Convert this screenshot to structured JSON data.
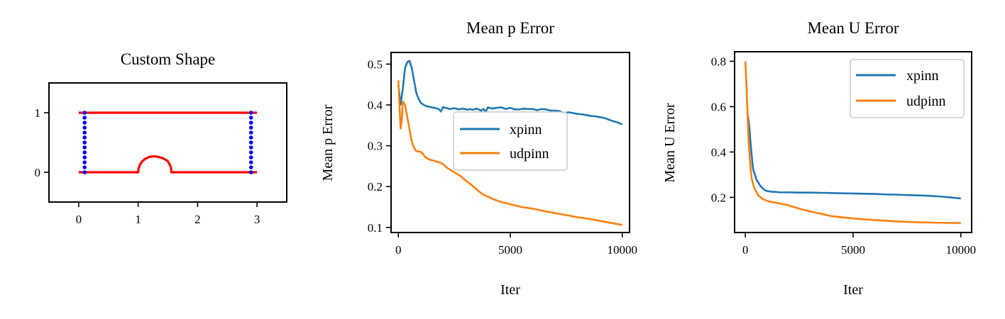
{
  "chart_data": [
    {
      "type": "line",
      "title": "Custom Shape",
      "xlabel": "",
      "ylabel": "",
      "xlim": [
        -0.5,
        3.5
      ],
      "ylim": [
        -0.5,
        1.5
      ],
      "xticks": [
        0,
        1,
        2,
        3
      ],
      "yticks": [
        0,
        1
      ],
      "x_tick_labels": [
        "0",
        "1",
        "2",
        "3"
      ],
      "y_tick_labels": [
        "0",
        "1"
      ],
      "grid": false,
      "series": [
        {
          "role": "top-boundary",
          "color": "#ff0000",
          "x": [
            0,
            3
          ],
          "y": [
            1,
            1
          ]
        },
        {
          "role": "bottom-boundary-with-bump",
          "color": "#ff0000",
          "x": [
            0,
            1.0,
            1.0079,
            1.0313,
            1.0693,
            1.1202,
            1.1819,
            1.2515,
            1.3262,
            1.4025,
            1.4773,
            1.5,
            1.5462,
            1.5573,
            1.5573,
            3
          ],
          "y": [
            0,
            0,
            0.0669,
            0.1294,
            0.1837,
            0.2263,
            0.2546,
            0.2667,
            0.2618,
            0.2402,
            0.2035,
            0.1838,
            0.1,
            0.05,
            0,
            0
          ]
        },
        {
          "role": "left-interface-points",
          "color": "#0000ff",
          "marker": "dot",
          "x_const": 0.1,
          "y": [
            0,
            0.0833,
            0.1667,
            0.25,
            0.3333,
            0.4167,
            0.5,
            0.5833,
            0.6667,
            0.75,
            0.8333,
            0.9167,
            1
          ]
        },
        {
          "role": "right-interface-points",
          "color": "#0000ff",
          "marker": "dot",
          "x_const": 2.9,
          "y": [
            0,
            0.0833,
            0.1667,
            0.25,
            0.3333,
            0.4167,
            0.5,
            0.5833,
            0.6667,
            0.75,
            0.8333,
            0.9167,
            1
          ]
        }
      ]
    },
    {
      "type": "line",
      "title": "Mean p Error",
      "xlabel": "Iter",
      "ylabel": "Mean p Error",
      "xlim": [
        -325,
        10325
      ],
      "ylim": [
        0.0875,
        0.5285
      ],
      "xticks": [
        0,
        5000,
        10000
      ],
      "yticks": [
        0.1,
        0.2,
        0.3,
        0.4,
        0.5
      ],
      "x_tick_labels": [
        "0",
        "5000",
        "10000"
      ],
      "y_tick_labels": [
        "0.1",
        "0.2",
        "0.3",
        "0.4",
        "0.5"
      ],
      "grid": false,
      "legend": "center-right",
      "series": [
        {
          "name": "xpinn",
          "color": "#1f77b4",
          "x": [
            0,
            100,
            200,
            300,
            400,
            500,
            600,
            700,
            800,
            900,
            1000,
            1200,
            1400,
            1600,
            1800,
            1900,
            2000,
            2100,
            2300,
            2500,
            2700,
            2900,
            3100,
            3200,
            3300,
            3500,
            3700,
            3800,
            3900,
            4000,
            4200,
            4400,
            4600,
            4800,
            5000,
            5200,
            5400,
            5600,
            5800,
            6000,
            6200,
            6400,
            6600,
            6800,
            7000,
            7200,
            7400,
            7600,
            7800,
            8000,
            8200,
            8400,
            8600,
            8800,
            9000,
            9200,
            9400,
            9600,
            9800,
            10000
          ],
          "y": [
            0.45,
            0.4,
            0.44,
            0.49,
            0.505,
            0.508,
            0.49,
            0.46,
            0.43,
            0.415,
            0.405,
            0.398,
            0.395,
            0.393,
            0.39,
            0.384,
            0.395,
            0.393,
            0.39,
            0.392,
            0.389,
            0.391,
            0.388,
            0.39,
            0.388,
            0.391,
            0.386,
            0.39,
            0.383,
            0.394,
            0.391,
            0.393,
            0.394,
            0.39,
            0.393,
            0.389,
            0.389,
            0.391,
            0.39,
            0.39,
            0.387,
            0.39,
            0.389,
            0.386,
            0.386,
            0.385,
            0.38,
            0.382,
            0.38,
            0.378,
            0.377,
            0.375,
            0.373,
            0.372,
            0.37,
            0.368,
            0.364,
            0.36,
            0.357,
            0.352
          ]
        },
        {
          "name": "udpinn",
          "color": "#ff7f0e",
          "x": [
            0,
            50,
            100,
            150,
            200,
            250,
            300,
            400,
            500,
            600,
            700,
            800,
            900,
            1000,
            1100,
            1200,
            1400,
            1600,
            1800,
            2000,
            2200,
            2500,
            2800,
            3000,
            3200,
            3400,
            3600,
            3800,
            4000,
            4300,
            4600,
            5000,
            5500,
            6000,
            6500,
            7000,
            7500,
            8000,
            8500,
            9000,
            9500,
            10000
          ],
          "y": [
            0.46,
            0.4,
            0.342,
            0.36,
            0.408,
            0.405,
            0.4,
            0.37,
            0.34,
            0.31,
            0.295,
            0.287,
            0.286,
            0.285,
            0.28,
            0.272,
            0.266,
            0.263,
            0.26,
            0.255,
            0.245,
            0.235,
            0.225,
            0.215,
            0.207,
            0.198,
            0.188,
            0.18,
            0.175,
            0.168,
            0.162,
            0.157,
            0.15,
            0.146,
            0.14,
            0.135,
            0.13,
            0.125,
            0.121,
            0.116,
            0.111,
            0.106
          ]
        }
      ]
    },
    {
      "type": "line",
      "title": "Mean U Error",
      "xlabel": "Iter",
      "ylabel": "Mean U Error",
      "xlim": [
        -500,
        10500
      ],
      "ylim": [
        0.045,
        0.842
      ],
      "xticks": [
        0,
        5000,
        10000
      ],
      "yticks": [
        0.2,
        0.4,
        0.6,
        0.8
      ],
      "x_tick_labels": [
        "0",
        "5000",
        "10000"
      ],
      "y_tick_labels": [
        "0.2",
        "0.4",
        "0.6",
        "0.8"
      ],
      "grid": false,
      "legend": "top-right",
      "series": [
        {
          "name": "xpinn",
          "color": "#1f77b4",
          "x": [
            100,
            150,
            200,
            250,
            300,
            350,
            400,
            450,
            500,
            600,
            700,
            800,
            900,
            1000,
            1200,
            1400,
            1600,
            2000,
            2500,
            3000,
            3500,
            4000,
            4500,
            5000,
            5500,
            6000,
            6500,
            7000,
            7500,
            8000,
            8500,
            9000,
            9500,
            10000
          ],
          "y": [
            0.57,
            0.54,
            0.49,
            0.43,
            0.38,
            0.33,
            0.31,
            0.3,
            0.28,
            0.265,
            0.25,
            0.24,
            0.232,
            0.228,
            0.225,
            0.224,
            0.222,
            0.222,
            0.221,
            0.221,
            0.22,
            0.219,
            0.218,
            0.217,
            0.216,
            0.215,
            0.213,
            0.212,
            0.21,
            0.209,
            0.207,
            0.204,
            0.2,
            0.195
          ]
        },
        {
          "name": "udpinn",
          "color": "#ff7f0e",
          "x": [
            0,
            50,
            100,
            150,
            200,
            250,
            300,
            400,
            500,
            600,
            700,
            800,
            1000,
            1200,
            1500,
            2000,
            2500,
            3000,
            3500,
            4000,
            5000,
            6000,
            7000,
            8000,
            9000,
            10000
          ],
          "y": [
            0.8,
            0.7,
            0.57,
            0.45,
            0.38,
            0.32,
            0.28,
            0.245,
            0.225,
            0.21,
            0.2,
            0.193,
            0.185,
            0.18,
            0.175,
            0.165,
            0.15,
            0.138,
            0.128,
            0.117,
            0.107,
            0.1,
            0.094,
            0.09,
            0.088,
            0.087
          ]
        }
      ]
    }
  ]
}
